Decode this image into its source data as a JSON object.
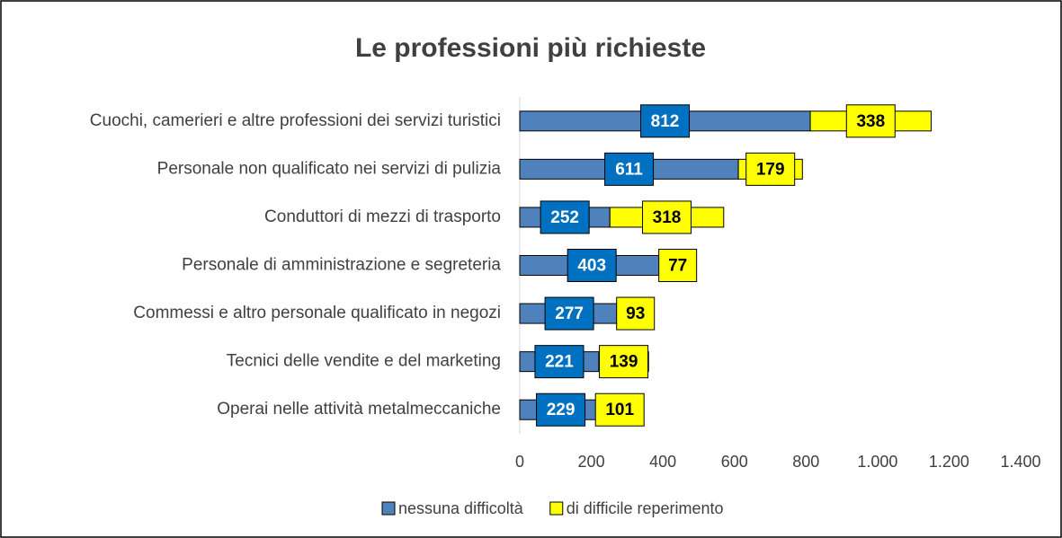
{
  "chart_data": {
    "type": "stacked-bar-horizontal",
    "title": "Le professioni più richieste",
    "categories": [
      "Cuochi, camerieri e altre professioni dei servizi turistici",
      "Personale non qualificato nei servizi di pulizia",
      "Conduttori di mezzi di trasporto",
      "Personale di amministrazione e segreteria",
      "Commessi e altro personale qualificato in negozi",
      "Tecnici delle vendite e del marketing",
      "Operai nelle attività metalmeccaniche"
    ],
    "series": [
      {
        "name": "nessuna difficoltà",
        "color": "#4f81bd",
        "label_color": "#0070c0",
        "values": [
          812,
          611,
          252,
          403,
          277,
          221,
          229
        ]
      },
      {
        "name": "di difficile reperimento",
        "color": "#ffff00",
        "label_color": "#ffff00",
        "values": [
          338,
          179,
          318,
          77,
          93,
          139,
          101
        ]
      }
    ],
    "xlim": [
      0,
      1400
    ],
    "xticks": [
      0,
      200,
      400,
      600,
      800,
      {
        "value": 1000,
        "label": "1.000"
      },
      {
        "value": 1200,
        "label": "1.200"
      },
      {
        "value": 1400,
        "label": "1.400"
      }
    ],
    "legend": "bottom"
  }
}
